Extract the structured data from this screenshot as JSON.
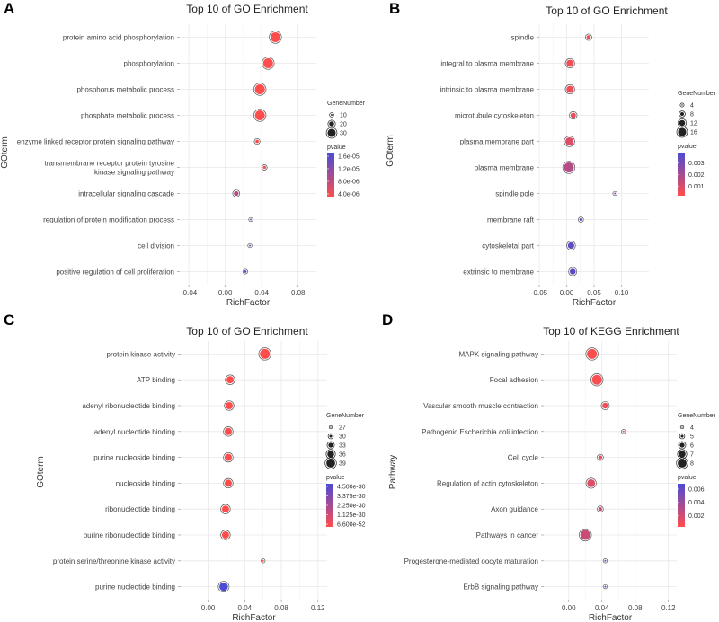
{
  "chart_data": [
    {
      "panel": "A",
      "type": "scatter",
      "title": "Top 10 of GO Enrichment",
      "xlabel": "RichFactor",
      "ylabel": "GOterm",
      "xlim": [
        -0.05,
        0.1
      ],
      "xticks": [
        -0.04,
        0.0,
        0.04,
        0.08
      ],
      "xtick_labels": [
        "-0.04",
        "0.00",
        "0.04",
        "0.08"
      ],
      "grid": true,
      "legend_position": "right",
      "size_legend": {
        "title": "GeneNumber",
        "values": [
          10,
          20,
          30
        ],
        "labels": [
          "10",
          "20",
          "30"
        ]
      },
      "color_legend": {
        "title": "pvalue",
        "low_color": "#ff4d4d",
        "high_color": "#4b4bd6",
        "range": [
          4e-06,
          1.6e-05
        ],
        "labels": [
          "1.6e-05",
          "1.2e-05",
          "8.0e-06",
          "4.0e-06"
        ]
      },
      "categories": [
        "protein amino acid phosphorylation",
        "phosphorylation",
        "phosphorus metabolic process",
        "phosphate metabolic process",
        "enzyme linked receptor protein signaling pathway",
        "transmembrane receptor protein tyrosine\nkinase signaling pathway",
        "intracellular signaling cascade",
        "regulation of protein modification process",
        "cell division",
        "positive regulation of cell proliferation"
      ],
      "points": [
        {
          "term": "protein amino acid phosphorylation",
          "rich_factor": 0.055,
          "gene_number": 32,
          "pvalue": 3.5e-06
        },
        {
          "term": "phosphorylation",
          "rich_factor": 0.047,
          "gene_number": 32,
          "pvalue": 3.8e-06
        },
        {
          "term": "phosphorus metabolic process",
          "rich_factor": 0.038,
          "gene_number": 32,
          "pvalue": 4e-06
        },
        {
          "term": "phosphate metabolic process",
          "rich_factor": 0.038,
          "gene_number": 32,
          "pvalue": 4e-06
        },
        {
          "term": "enzyme linked receptor protein signaling pathway",
          "rich_factor": 0.035,
          "gene_number": 12,
          "pvalue": 4.5e-06
        },
        {
          "term": "transmembrane receptor protein tyrosine kinase signaling pathway",
          "rich_factor": 0.043,
          "gene_number": 11,
          "pvalue": 5e-06
        },
        {
          "term": "intracellular signaling cascade",
          "rich_factor": 0.012,
          "gene_number": 16,
          "pvalue": 9e-06
        },
        {
          "term": "regulation of protein modification process",
          "rich_factor": 0.028,
          "gene_number": 7,
          "pvalue": 1.3e-05
        },
        {
          "term": "cell division",
          "rich_factor": 0.027,
          "gene_number": 7,
          "pvalue": 1.4e-05
        },
        {
          "term": "positive regulation of cell proliferation",
          "rich_factor": 0.022,
          "gene_number": 9,
          "pvalue": 1.6e-05
        }
      ]
    },
    {
      "panel": "B",
      "type": "scatter",
      "title": "Top 10 of GO Enrichment",
      "xlabel": "RichFactor",
      "ylabel": "GOterm",
      "xlim": [
        -0.05,
        0.15
      ],
      "xticks": [
        -0.05,
        0.0,
        0.05,
        0.1
      ],
      "xtick_labels": [
        "-0.05",
        "0.00",
        "0.05",
        "0.10"
      ],
      "grid": true,
      "legend_position": "right",
      "size_legend": {
        "title": "GeneNumber",
        "values": [
          4,
          8,
          12,
          16
        ],
        "labels": [
          "4",
          "8",
          "12",
          "16"
        ]
      },
      "color_legend": {
        "title": "pvalue",
        "low_color": "#ff4d4d",
        "high_color": "#4b4bd6",
        "range": [
          0.0002,
          0.0039
        ],
        "labels": [
          "0.003",
          "0.002",
          "0.001"
        ],
        "label_values": [
          0.003,
          0.002,
          0.001
        ]
      },
      "categories": [
        "spindle",
        "integral to plasma membrane",
        "intrinsic to plasma membrane",
        "microtubule cytoskeleton",
        "plasma membrane part",
        "plasma membrane",
        "spindle pole",
        "membrane raft",
        "cytoskeletal part",
        "extrinsic to membrane"
      ],
      "points": [
        {
          "term": "spindle",
          "rich_factor": 0.04,
          "gene_number": 7,
          "pvalue": 0.0003
        },
        {
          "term": "integral to plasma membrane",
          "rich_factor": 0.006,
          "gene_number": 12,
          "pvalue": 0.0005
        },
        {
          "term": "intrinsic to plasma membrane",
          "rich_factor": 0.006,
          "gene_number": 12,
          "pvalue": 0.0005
        },
        {
          "term": "microtubule cytoskeleton",
          "rich_factor": 0.012,
          "gene_number": 9,
          "pvalue": 0.0006
        },
        {
          "term": "plasma membrane part",
          "rich_factor": 0.005,
          "gene_number": 14,
          "pvalue": 0.0009
        },
        {
          "term": "plasma membrane",
          "rich_factor": 0.004,
          "gene_number": 17,
          "pvalue": 0.0017
        },
        {
          "term": "spindle pole",
          "rich_factor": 0.088,
          "gene_number": 3,
          "pvalue": 0.0025
        },
        {
          "term": "membrane raft",
          "rich_factor": 0.026,
          "gene_number": 5,
          "pvalue": 0.0033
        },
        {
          "term": "cytoskeletal part",
          "rich_factor": 0.008,
          "gene_number": 11,
          "pvalue": 0.0035
        },
        {
          "term": "extrinsic to membrane",
          "rich_factor": 0.011,
          "gene_number": 10,
          "pvalue": 0.0036
        }
      ]
    },
    {
      "panel": "C",
      "type": "scatter",
      "title": "Top 10 of GO Enrichment",
      "xlabel": "RichFactor",
      "ylabel": "GOterm",
      "xlim": [
        -0.03,
        0.13
      ],
      "xticks": [
        0.0,
        0.04,
        0.08,
        0.12
      ],
      "xtick_labels": [
        "0.00",
        "0.04",
        "0.08",
        "0.12"
      ],
      "grid": true,
      "legend_position": "right",
      "size_legend": {
        "title": "GeneNumber",
        "values": [
          27,
          30,
          33,
          36,
          39
        ],
        "labels": [
          "27",
          "30",
          "33",
          "36",
          "39"
        ]
      },
      "color_legend": {
        "title": "pvalue",
        "low_color": "#ff4d4d",
        "high_color": "#4b4bd6",
        "range": [
          6.6e-52,
          4.5e-30
        ],
        "labels": [
          "4.500e-30",
          "3.375e-30",
          "2.250e-30",
          "1.125e-30",
          "6.600e-52"
        ]
      },
      "categories": [
        "protein kinase activity",
        "ATP binding",
        "adenyl ribonucleotide binding",
        "adenyl nucleotide binding",
        "purine nucleoside binding",
        "nucleoside binding",
        "ribonucleotide binding",
        "purine ribonucleotide binding",
        "protein serine/threonine kinase activity",
        "purine nucleotide binding"
      ],
      "points": [
        {
          "term": "protein kinase activity",
          "rich_factor": 0.062,
          "gene_number": 39,
          "pvalue": 6.6e-52
        },
        {
          "term": "ATP binding",
          "rich_factor": 0.024,
          "gene_number": 35,
          "pvalue": 2e-40
        },
        {
          "term": "adenyl ribonucleotide binding",
          "rich_factor": 0.023,
          "gene_number": 35,
          "pvalue": 2e-40
        },
        {
          "term": "adenyl nucleotide binding",
          "rich_factor": 0.022,
          "gene_number": 35,
          "pvalue": 3e-40
        },
        {
          "term": "purine nucleoside binding",
          "rich_factor": 0.022,
          "gene_number": 35,
          "pvalue": 3e-40
        },
        {
          "term": "nucleoside binding",
          "rich_factor": 0.022,
          "gene_number": 35,
          "pvalue": 3e-40
        },
        {
          "term": "ribonucleotide binding",
          "rich_factor": 0.019,
          "gene_number": 35,
          "pvalue": 5e-38
        },
        {
          "term": "purine ribonucleotide binding",
          "rich_factor": 0.019,
          "gene_number": 35,
          "pvalue": 5e-38
        },
        {
          "term": "protein serine/threonine kinase activity",
          "rich_factor": 0.06,
          "gene_number": 27,
          "pvalue": 1e-40
        },
        {
          "term": "purine nucleotide binding",
          "rich_factor": 0.017,
          "gene_number": 37,
          "pvalue": 4.5e-30
        }
      ]
    },
    {
      "panel": "D",
      "type": "scatter",
      "title": "Top 10 of KEGG Enrichment",
      "xlabel": "RichFactor",
      "ylabel": "Pathway",
      "xlim": [
        -0.03,
        0.13
      ],
      "xticks": [
        0.0,
        0.04,
        0.08,
        0.12
      ],
      "xtick_labels": [
        "0.00",
        "0.04",
        "0.08",
        "0.12"
      ],
      "grid": true,
      "legend_position": "right",
      "size_legend": {
        "title": "GeneNumber",
        "values": [
          4,
          5,
          6,
          7,
          8
        ],
        "labels": [
          "4",
          "5",
          "6",
          "7",
          "8"
        ]
      },
      "color_legend": {
        "title": "pvalue",
        "low_color": "#ff4d4d",
        "high_color": "#4b4bd6",
        "range": [
          0.0003,
          0.0068
        ],
        "labels": [
          "0.006",
          "0.004",
          "0.002"
        ],
        "label_values": [
          0.006,
          0.004,
          0.002
        ]
      },
      "categories": [
        "MAPK signaling pathway",
        "Focal adhesion",
        "Vascular smooth muscle contraction",
        "Pathogenic Escherichia coli infection",
        "Cell cycle",
        "Regulation of actin cytoskeleton",
        "Axon guidance",
        "Pathways in cancer",
        "Progesterone-mediated oocyte maturation",
        "ErbB signaling pathway"
      ],
      "points": [
        {
          "term": "MAPK signaling pathway",
          "rich_factor": 0.028,
          "gene_number": 8,
          "pvalue": 0.0004
        },
        {
          "term": "Focal adhesion",
          "rich_factor": 0.034,
          "gene_number": 8,
          "pvalue": 0.0005
        },
        {
          "term": "Vascular smooth muscle contraction",
          "rich_factor": 0.044,
          "gene_number": 6,
          "pvalue": 0.0008
        },
        {
          "term": "Pathogenic Escherichia coli infection",
          "rich_factor": 0.066,
          "gene_number": 4,
          "pvalue": 0.0015
        },
        {
          "term": "Cell cycle",
          "rich_factor": 0.038,
          "gene_number": 5,
          "pvalue": 0.0012
        },
        {
          "term": "Regulation of actin cytoskeleton",
          "rich_factor": 0.027,
          "gene_number": 7,
          "pvalue": 0.0015
        },
        {
          "term": "Axon guidance",
          "rich_factor": 0.038,
          "gene_number": 5,
          "pvalue": 0.0018
        },
        {
          "term": "Pathways in cancer",
          "rich_factor": 0.02,
          "gene_number": 8,
          "pvalue": 0.0022
        },
        {
          "term": "Progesterone-mediated oocyte maturation",
          "rich_factor": 0.044,
          "gene_number": 4,
          "pvalue": 0.0055
        },
        {
          "term": "ErbB signaling pathway",
          "rich_factor": 0.044,
          "gene_number": 4,
          "pvalue": 0.0066
        }
      ]
    }
  ]
}
